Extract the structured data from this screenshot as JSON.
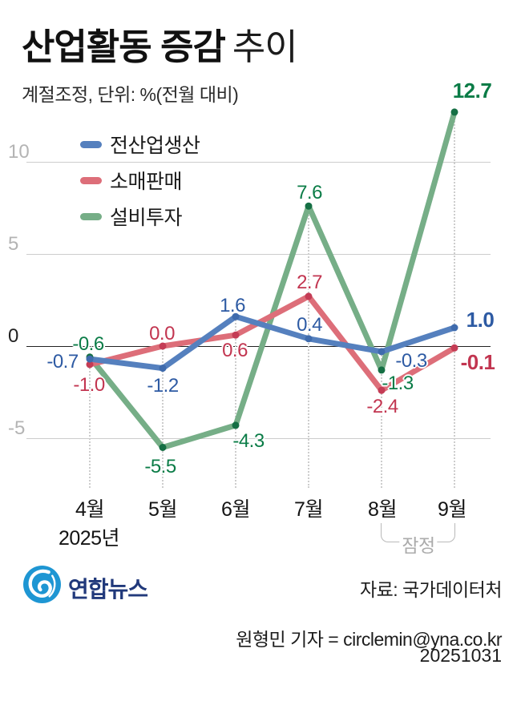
{
  "header": {
    "title_bold": "산업활동 증감",
    "title_light": "추이",
    "subtitle": "계절조정, 단위: %(전월 대비)"
  },
  "chart_data": {
    "type": "line",
    "title": "산업활동 증감 추이",
    "unit": "%(전월 대비)",
    "categories": [
      "4월",
      "5월",
      "6월",
      "7월",
      "8월",
      "9월"
    ],
    "year_label": "2025년",
    "provisional_label": "잠정",
    "provisional_months": [
      "8월",
      "9월"
    ],
    "yticks": [
      "10",
      "5",
      "0",
      "-5"
    ],
    "ytick_values": [
      10,
      5,
      0,
      -5
    ],
    "ylim": [
      -7,
      14
    ],
    "grid": "horizontal",
    "legend_position": "top-left",
    "series": [
      {
        "name": "전산업생산",
        "color": "#5580be",
        "dot_color": "#3f6bad",
        "label_color": "#2d5aa3",
        "values": [
          -0.7,
          -1.2,
          1.6,
          0.4,
          -0.3,
          1.0
        ],
        "point_labels": [
          "-0.7",
          "-1.2",
          "1.6",
          "0.4",
          "-0.3",
          "1.0"
        ]
      },
      {
        "name": "소매판매",
        "color": "#dd6e79",
        "dot_color": "#c43c55",
        "label_color": "#c23550",
        "values": [
          -1.0,
          0.0,
          0.6,
          2.7,
          -2.4,
          -0.1
        ],
        "point_labels": [
          "-1.0",
          "0.0",
          "0.6",
          "2.7",
          "-2.4",
          "-0.1"
        ]
      },
      {
        "name": "설비투자",
        "color": "#76ae87",
        "dot_color": "#156f44",
        "label_color": "#0b7c47",
        "values": [
          -0.6,
          -5.5,
          -4.3,
          7.6,
          -1.3,
          12.7
        ],
        "point_labels": [
          "-0.6",
          "-5.5",
          "-4.3",
          "7.6",
          "-1.3",
          "12.7"
        ]
      }
    ]
  },
  "footer": {
    "brand": "연합뉴스",
    "brand_color": "#21397b",
    "logo_color": "#1e96d3",
    "source": "자료: 국가데이터처",
    "credit": "원형민 기자 = circlemin@yna.co.kr",
    "date": "20251031"
  }
}
